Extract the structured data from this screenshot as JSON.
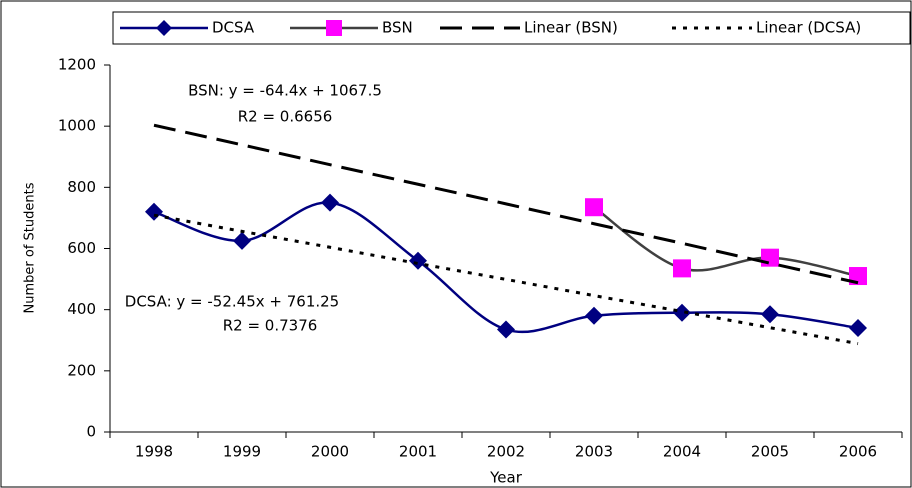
{
  "chart_data": {
    "type": "line",
    "x_label": "Year",
    "y_label": "Number of Students",
    "categories": [
      "1998",
      "1999",
      "2000",
      "2001",
      "2002",
      "2003",
      "2004",
      "2005",
      "2006"
    ],
    "series": [
      {
        "name": "DCSA",
        "color": "#000080",
        "marker": "diamond",
        "marker_color": "#000080",
        "style": "solid",
        "smooth": true,
        "values": [
          720,
          625,
          750,
          560,
          335,
          380,
          390,
          385,
          340
        ]
      },
      {
        "name": "BSN",
        "color": "#404040",
        "marker": "square",
        "marker_color": "#ff00ff",
        "style": "solid",
        "smooth": true,
        "values": [
          null,
          null,
          null,
          null,
          null,
          735,
          535,
          570,
          510
        ]
      },
      {
        "name": "Linear (BSN)",
        "color": "#000000",
        "marker": "none",
        "style": "dashed",
        "smooth": false,
        "values": [
          1003,
          939,
          874,
          810,
          746,
          681,
          617,
          552,
          488
        ]
      },
      {
        "name": "Linear (DCSA)",
        "color": "#000000",
        "marker": "none",
        "style": "dotted",
        "smooth": false,
        "values": [
          709,
          656,
          604,
          551,
          499,
          446,
          394,
          341,
          289
        ]
      }
    ],
    "ylim": [
      0,
      1200
    ],
    "yticks": [
      0,
      200,
      400,
      600,
      800,
      1000,
      1200
    ],
    "grid": false,
    "legend": "top",
    "annotations": [
      "BSN: y = -64.4x + 1067.5",
      "R2 = 0.6656",
      "DCSA: y = -52.45x + 761.25",
      "R2 = 0.7376"
    ]
  }
}
